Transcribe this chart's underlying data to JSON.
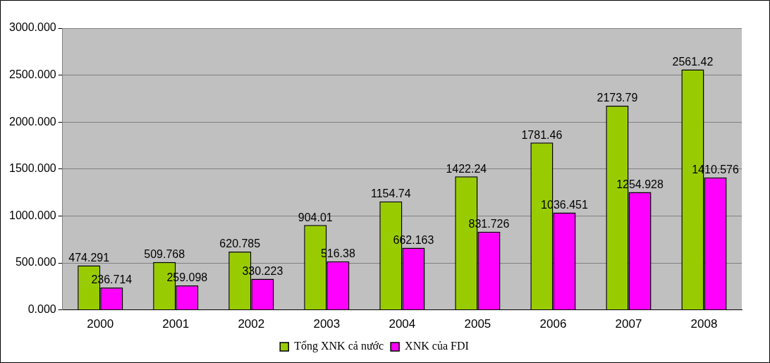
{
  "chart_data": {
    "type": "bar",
    "categories": [
      "2000",
      "2001",
      "2002",
      "2003",
      "2004",
      "2005",
      "2006",
      "2007",
      "2008"
    ],
    "series": [
      {
        "name": "Tổng XNK cả nước",
        "color": "#99cc00",
        "values": [
          474.291,
          509.768,
          620.785,
          904.01,
          1154.74,
          1422.24,
          1781.46,
          2173.79,
          2561.42
        ]
      },
      {
        "name": "XNK của FDI",
        "color": "#ff00ff",
        "values": [
          236.714,
          259.098,
          330.223,
          516.38,
          662.163,
          831.726,
          1036.451,
          1254.928,
          1410.576
        ]
      }
    ],
    "ylim": [
      0,
      3000
    ],
    "yticks": [
      {
        "value": 0,
        "label": "0.000"
      },
      {
        "value": 500,
        "label": "500.000"
      },
      {
        "value": 1000,
        "label": "1000.000"
      },
      {
        "value": 1500,
        "label": "1500.000"
      },
      {
        "value": 2000,
        "label": "2000.000"
      },
      {
        "value": 2500,
        "label": "2500.000"
      },
      {
        "value": 3000,
        "label": "3000.000"
      }
    ],
    "grid": "y",
    "legend": "bottom",
    "data_labels": true
  }
}
